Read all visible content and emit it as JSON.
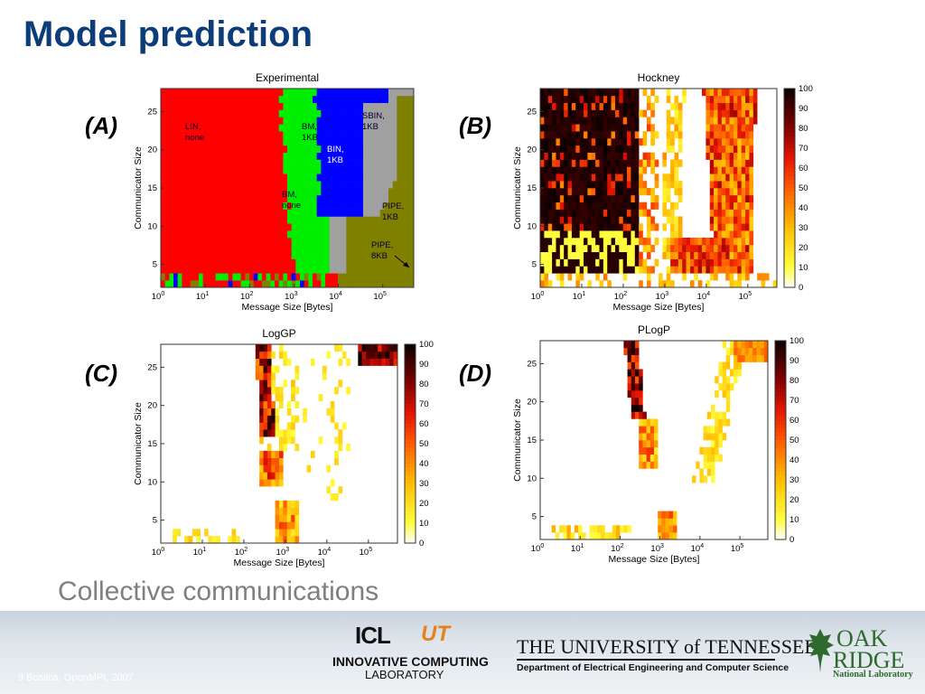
{
  "slide": {
    "title": "Model prediction",
    "subtitle": "Collective communications",
    "footer": "9 Bosilca, OpenMPI, 2007"
  },
  "logos": {
    "icl_top": "ICL",
    "icl_ut": "UT",
    "icl_line1": "INNOVATIVE COMPUTING",
    "icl_line2": "LABORATORY",
    "ut_name": "THE UNIVERSITY of TENNESSEE",
    "ut_dept": "Department of Electrical Engineering and Computer Science",
    "ornl_oak": "OAK",
    "ornl_ridge": "RIDGE",
    "ornl_nl": "National Laboratory"
  },
  "colors": {
    "title": "#0d3d78",
    "lin": "#ff0000",
    "bm": "#00ee00",
    "bin": "#0000ff",
    "sbin": "#a0a0a0",
    "pipe": "#808000"
  },
  "chart_data": [
    {
      "type": "heatmap",
      "panel": "(A)",
      "title": "Experimental",
      "xlabel": "Message Size [Bytes]",
      "ylabel": "Communicator Size",
      "xscale": "log",
      "xlim": [
        1,
        500000
      ],
      "ylim": [
        2,
        28
      ],
      "xticks": [
        "10^0",
        "10^1",
        "10^2",
        "10^3",
        "10^4",
        "10^5"
      ],
      "yticks": [
        5,
        10,
        15,
        20,
        25
      ],
      "annotations": [
        {
          "text": "LIN,\nnone"
        },
        {
          "text": "BM,\n1KB"
        },
        {
          "text": "SBIN,\n1KB"
        },
        {
          "text": "BIN,\n1KB"
        },
        {
          "text": "BM,\nnone"
        },
        {
          "text": "PIPE,\n1KB"
        },
        {
          "text": "PIPE,\n8KB"
        }
      ]
    },
    {
      "type": "heatmap",
      "panel": "(B)",
      "title": "Hockney",
      "xlabel": "Message Size [Bytes]",
      "ylabel": "Communicator Size",
      "xscale": "log",
      "xlim": [
        1,
        500000
      ],
      "ylim": [
        2,
        28
      ],
      "xticks": [
        "10^0",
        "10^1",
        "10^2",
        "10^3",
        "10^4",
        "10^5"
      ],
      "yticks": [
        5,
        10,
        15,
        20,
        25
      ],
      "colorbar": {
        "min": 0,
        "max": 100,
        "ticks": [
          0,
          10,
          20,
          30,
          40,
          50,
          60,
          70,
          80,
          90,
          100
        ]
      }
    },
    {
      "type": "heatmap",
      "panel": "(C)",
      "title": "LogGP",
      "xlabel": "Message Size [Bytes]",
      "ylabel": "Communicator Size",
      "xscale": "log",
      "xlim": [
        1,
        500000
      ],
      "ylim": [
        2,
        28
      ],
      "xticks": [
        "10^0",
        "10^1",
        "10^2",
        "10^3",
        "10^4",
        "10^5"
      ],
      "yticks": [
        5,
        10,
        15,
        20,
        25
      ],
      "colorbar": {
        "min": 0,
        "max": 100,
        "ticks": [
          0,
          10,
          20,
          30,
          40,
          50,
          60,
          70,
          80,
          90,
          100
        ]
      }
    },
    {
      "type": "heatmap",
      "panel": "(D)",
      "title": "PLogP",
      "xlabel": "Message Size [Bytes]",
      "ylabel": "Communicator Size",
      "xscale": "log",
      "xlim": [
        1,
        500000
      ],
      "ylim": [
        2,
        28
      ],
      "xticks": [
        "10^0",
        "10^1",
        "10^2",
        "10^3",
        "10^4",
        "10^5"
      ],
      "yticks": [
        5,
        10,
        15,
        20,
        25
      ],
      "colorbar": {
        "min": 0,
        "max": 100,
        "ticks": [
          0,
          10,
          20,
          30,
          40,
          50,
          60,
          70,
          80,
          90,
          100
        ]
      }
    }
  ]
}
